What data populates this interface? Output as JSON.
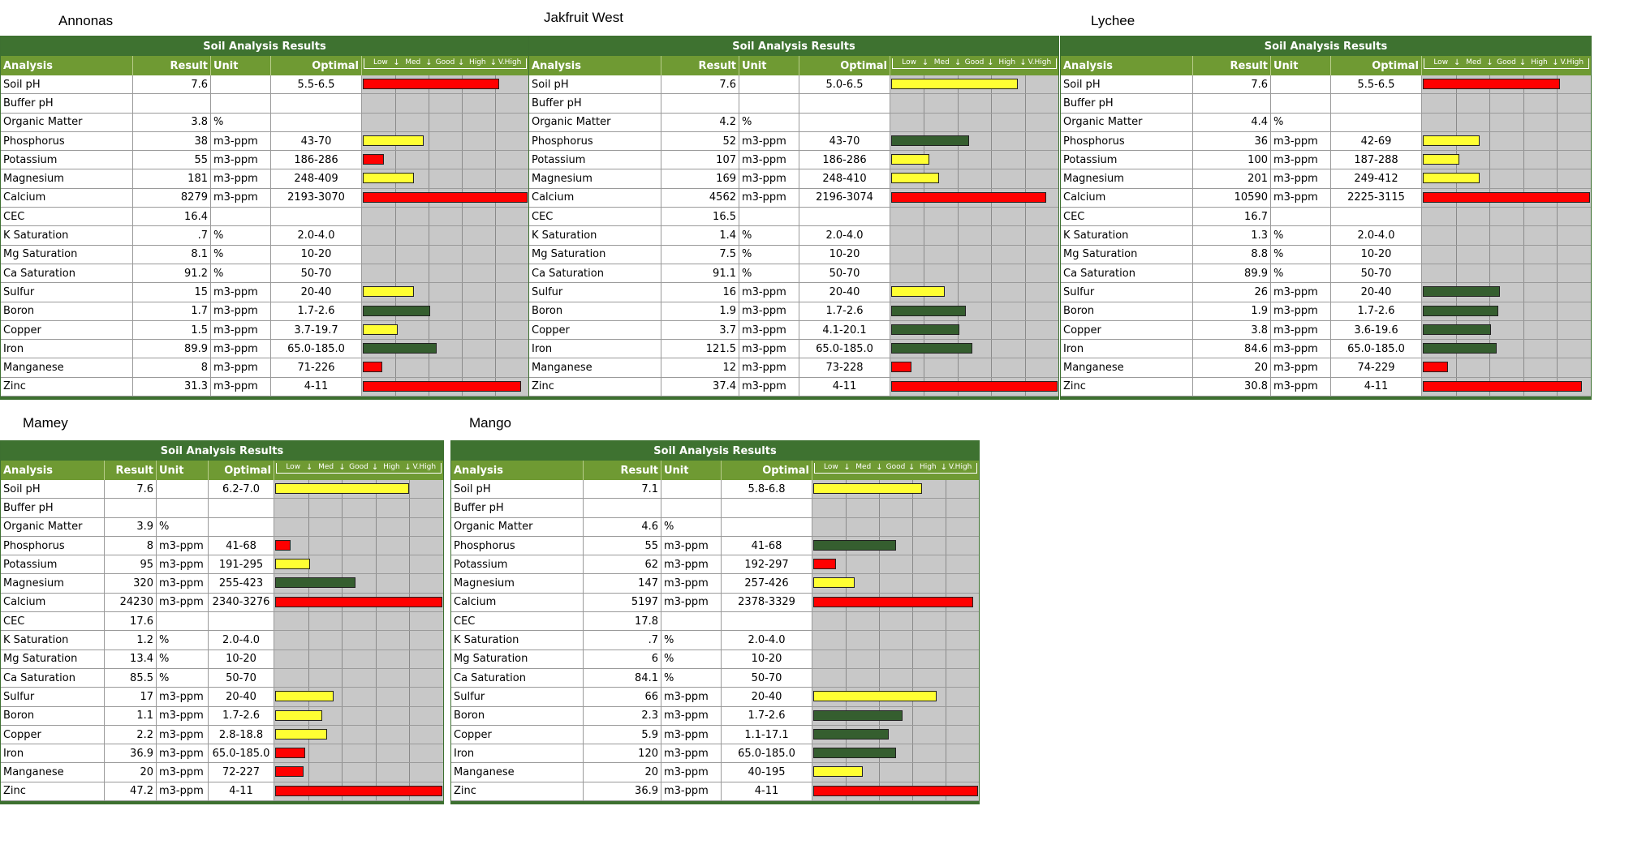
{
  "header_label": "Soil Analysis Results",
  "columns": {
    "analysis": "Analysis",
    "result": "Result",
    "unit": "Unit",
    "optimal": "Optimal"
  },
  "scale_labels": [
    "Low",
    "Med",
    "Good",
    "High",
    "V.High"
  ],
  "colors": {
    "red": "#ff0000",
    "yellow": "#ffff33",
    "green": "#355e2f",
    "header_dark": "#3e7230",
    "header_light": "#6f9a33"
  },
  "panels": [
    {
      "name": "Annonas",
      "rows": [
        {
          "analysis": "Soil pH",
          "result": "7.6",
          "unit": "",
          "optimal": "5.5-6.5",
          "bar": 0.83,
          "color": "red"
        },
        {
          "analysis": "Buffer pH",
          "result": "",
          "unit": "",
          "optimal": "",
          "bar": 0,
          "color": ""
        },
        {
          "analysis": "Organic Matter",
          "result": "3.8",
          "unit": "%",
          "optimal": "",
          "bar": 0,
          "color": ""
        },
        {
          "analysis": "Phosphorus",
          "result": "38",
          "unit": "m3-ppm",
          "optimal": "43-70",
          "bar": 0.37,
          "color": "yellow"
        },
        {
          "analysis": "Potassium",
          "result": "55",
          "unit": "m3-ppm",
          "optimal": "186-286",
          "bar": 0.13,
          "color": "red"
        },
        {
          "analysis": "Magnesium",
          "result": "181",
          "unit": "m3-ppm",
          "optimal": "248-409",
          "bar": 0.31,
          "color": "yellow"
        },
        {
          "analysis": "Calcium",
          "result": "8279",
          "unit": "m3-ppm",
          "optimal": "2193-3070",
          "bar": 1.0,
          "color": "red"
        },
        {
          "analysis": "CEC",
          "result": "16.4",
          "unit": "",
          "optimal": "",
          "bar": 0,
          "color": ""
        },
        {
          "analysis": "K Saturation",
          "result": ".7",
          "unit": "%",
          "optimal": "2.0-4.0",
          "bar": 0,
          "color": ""
        },
        {
          "analysis": "Mg Saturation",
          "result": "8.1",
          "unit": "%",
          "optimal": "10-20",
          "bar": 0,
          "color": ""
        },
        {
          "analysis": "Ca Saturation",
          "result": "91.2",
          "unit": "%",
          "optimal": "50-70",
          "bar": 0,
          "color": ""
        },
        {
          "analysis": "Sulfur",
          "result": "15",
          "unit": "m3-ppm",
          "optimal": "20-40",
          "bar": 0.31,
          "color": "yellow"
        },
        {
          "analysis": "Boron",
          "result": "1.7",
          "unit": "m3-ppm",
          "optimal": "1.7-2.6",
          "bar": 0.41,
          "color": "green"
        },
        {
          "analysis": "Copper",
          "result": "1.5",
          "unit": "m3-ppm",
          "optimal": "3.7-19.7",
          "bar": 0.21,
          "color": "yellow"
        },
        {
          "analysis": "Iron",
          "result": "89.9",
          "unit": "m3-ppm",
          "optimal": "65.0-185.0",
          "bar": 0.45,
          "color": "green"
        },
        {
          "analysis": "Manganese",
          "result": "8",
          "unit": "m3-ppm",
          "optimal": "71-226",
          "bar": 0.12,
          "color": "red"
        },
        {
          "analysis": "Zinc",
          "result": "31.3",
          "unit": "m3-ppm",
          "optimal": "4-11",
          "bar": 0.96,
          "color": "red"
        }
      ]
    },
    {
      "name": "Jakfruit West",
      "rows": [
        {
          "analysis": "Soil pH",
          "result": "7.6",
          "unit": "",
          "optimal": "5.0-6.5",
          "bar": 0.76,
          "color": "yellow"
        },
        {
          "analysis": "Buffer pH",
          "result": "",
          "unit": "",
          "optimal": "",
          "bar": 0,
          "color": ""
        },
        {
          "analysis": "Organic Matter",
          "result": "4.2",
          "unit": "%",
          "optimal": "",
          "bar": 0,
          "color": ""
        },
        {
          "analysis": "Phosphorus",
          "result": "52",
          "unit": "m3-ppm",
          "optimal": "43-70",
          "bar": 0.47,
          "color": "green"
        },
        {
          "analysis": "Potassium",
          "result": "107",
          "unit": "m3-ppm",
          "optimal": "186-286",
          "bar": 0.23,
          "color": "yellow"
        },
        {
          "analysis": "Magnesium",
          "result": "169",
          "unit": "m3-ppm",
          "optimal": "248-410",
          "bar": 0.29,
          "color": "yellow"
        },
        {
          "analysis": "Calcium",
          "result": "4562",
          "unit": "m3-ppm",
          "optimal": "2196-3074",
          "bar": 0.93,
          "color": "red"
        },
        {
          "analysis": "CEC",
          "result": "16.5",
          "unit": "",
          "optimal": "",
          "bar": 0,
          "color": ""
        },
        {
          "analysis": "K Saturation",
          "result": "1.4",
          "unit": "%",
          "optimal": "2.0-4.0",
          "bar": 0,
          "color": ""
        },
        {
          "analysis": "Mg Saturation",
          "result": "7.5",
          "unit": "%",
          "optimal": "10-20",
          "bar": 0,
          "color": ""
        },
        {
          "analysis": "Ca Saturation",
          "result": "91.1",
          "unit": "%",
          "optimal": "50-70",
          "bar": 0,
          "color": ""
        },
        {
          "analysis": "Sulfur",
          "result": "16",
          "unit": "m3-ppm",
          "optimal": "20-40",
          "bar": 0.32,
          "color": "yellow"
        },
        {
          "analysis": "Boron",
          "result": "1.9",
          "unit": "m3-ppm",
          "optimal": "1.7-2.6",
          "bar": 0.45,
          "color": "green"
        },
        {
          "analysis": "Copper",
          "result": "3.7",
          "unit": "m3-ppm",
          "optimal": "4.1-20.1",
          "bar": 0.41,
          "color": "green"
        },
        {
          "analysis": "Iron",
          "result": "121.5",
          "unit": "m3-ppm",
          "optimal": "65.0-185.0",
          "bar": 0.49,
          "color": "green"
        },
        {
          "analysis": "Manganese",
          "result": "12",
          "unit": "m3-ppm",
          "optimal": "73-228",
          "bar": 0.12,
          "color": "red"
        },
        {
          "analysis": "Zinc",
          "result": "37.4",
          "unit": "m3-ppm",
          "optimal": "4-11",
          "bar": 1.0,
          "color": "red"
        }
      ]
    },
    {
      "name": "Lychee",
      "rows": [
        {
          "analysis": "Soil pH",
          "result": "7.6",
          "unit": "",
          "optimal": "5.5-6.5",
          "bar": 0.82,
          "color": "red"
        },
        {
          "analysis": "Buffer pH",
          "result": "",
          "unit": "",
          "optimal": "",
          "bar": 0,
          "color": ""
        },
        {
          "analysis": "Organic Matter",
          "result": "4.4",
          "unit": "%",
          "optimal": "",
          "bar": 0,
          "color": ""
        },
        {
          "analysis": "Phosphorus",
          "result": "36",
          "unit": "m3-ppm",
          "optimal": "42-69",
          "bar": 0.34,
          "color": "yellow"
        },
        {
          "analysis": "Potassium",
          "result": "100",
          "unit": "m3-ppm",
          "optimal": "187-288",
          "bar": 0.22,
          "color": "yellow"
        },
        {
          "analysis": "Magnesium",
          "result": "201",
          "unit": "m3-ppm",
          "optimal": "249-412",
          "bar": 0.34,
          "color": "yellow"
        },
        {
          "analysis": "Calcium",
          "result": "10590",
          "unit": "m3-ppm",
          "optimal": "2225-3115",
          "bar": 1.0,
          "color": "red"
        },
        {
          "analysis": "CEC",
          "result": "16.7",
          "unit": "",
          "optimal": "",
          "bar": 0,
          "color": ""
        },
        {
          "analysis": "K Saturation",
          "result": "1.3",
          "unit": "%",
          "optimal": "2.0-4.0",
          "bar": 0,
          "color": ""
        },
        {
          "analysis": "Mg Saturation",
          "result": "8.8",
          "unit": "%",
          "optimal": "10-20",
          "bar": 0,
          "color": ""
        },
        {
          "analysis": "Ca Saturation",
          "result": "89.9",
          "unit": "%",
          "optimal": "50-70",
          "bar": 0,
          "color": ""
        },
        {
          "analysis": "Sulfur",
          "result": "26",
          "unit": "m3-ppm",
          "optimal": "20-40",
          "bar": 0.46,
          "color": "green"
        },
        {
          "analysis": "Boron",
          "result": "1.9",
          "unit": "m3-ppm",
          "optimal": "1.7-2.6",
          "bar": 0.45,
          "color": "green"
        },
        {
          "analysis": "Copper",
          "result": "3.8",
          "unit": "m3-ppm",
          "optimal": "3.6-19.6",
          "bar": 0.41,
          "color": "green"
        },
        {
          "analysis": "Iron",
          "result": "84.6",
          "unit": "m3-ppm",
          "optimal": "65.0-185.0",
          "bar": 0.44,
          "color": "green"
        },
        {
          "analysis": "Manganese",
          "result": "20",
          "unit": "m3-ppm",
          "optimal": "74-229",
          "bar": 0.15,
          "color": "red"
        },
        {
          "analysis": "Zinc",
          "result": "30.8",
          "unit": "m3-ppm",
          "optimal": "4-11",
          "bar": 0.95,
          "color": "red"
        }
      ]
    },
    {
      "name": "Mamey",
      "rows": [
        {
          "analysis": "Soil pH",
          "result": "7.6",
          "unit": "",
          "optimal": "6.2-7.0",
          "bar": 0.8,
          "color": "yellow"
        },
        {
          "analysis": "Buffer pH",
          "result": "",
          "unit": "",
          "optimal": "",
          "bar": 0,
          "color": ""
        },
        {
          "analysis": "Organic Matter",
          "result": "3.9",
          "unit": "%",
          "optimal": "",
          "bar": 0,
          "color": ""
        },
        {
          "analysis": "Phosphorus",
          "result": "8",
          "unit": "m3-ppm",
          "optimal": "41-68",
          "bar": 0.09,
          "color": "red"
        },
        {
          "analysis": "Potassium",
          "result": "95",
          "unit": "m3-ppm",
          "optimal": "191-295",
          "bar": 0.21,
          "color": "yellow"
        },
        {
          "analysis": "Magnesium",
          "result": "320",
          "unit": "m3-ppm",
          "optimal": "255-423",
          "bar": 0.48,
          "color": "green"
        },
        {
          "analysis": "Calcium",
          "result": "24230",
          "unit": "m3-ppm",
          "optimal": "2340-3276",
          "bar": 1.0,
          "color": "red"
        },
        {
          "analysis": "CEC",
          "result": "17.6",
          "unit": "",
          "optimal": "",
          "bar": 0,
          "color": ""
        },
        {
          "analysis": "K Saturation",
          "result": "1.2",
          "unit": "%",
          "optimal": "2.0-4.0",
          "bar": 0,
          "color": ""
        },
        {
          "analysis": "Mg Saturation",
          "result": "13.4",
          "unit": "%",
          "optimal": "10-20",
          "bar": 0,
          "color": ""
        },
        {
          "analysis": "Ca Saturation",
          "result": "85.5",
          "unit": "%",
          "optimal": "50-70",
          "bar": 0,
          "color": ""
        },
        {
          "analysis": "Sulfur",
          "result": "17",
          "unit": "m3-ppm",
          "optimal": "20-40",
          "bar": 0.35,
          "color": "yellow"
        },
        {
          "analysis": "Boron",
          "result": "1.1",
          "unit": "m3-ppm",
          "optimal": "1.7-2.6",
          "bar": 0.28,
          "color": "yellow"
        },
        {
          "analysis": "Copper",
          "result": "2.2",
          "unit": "m3-ppm",
          "optimal": "2.8-18.8",
          "bar": 0.31,
          "color": "yellow"
        },
        {
          "analysis": "Iron",
          "result": "36.9",
          "unit": "m3-ppm",
          "optimal": "65.0-185.0",
          "bar": 0.18,
          "color": "red"
        },
        {
          "analysis": "Manganese",
          "result": "20",
          "unit": "m3-ppm",
          "optimal": "72-227",
          "bar": 0.17,
          "color": "red"
        },
        {
          "analysis": "Zinc",
          "result": "47.2",
          "unit": "m3-ppm",
          "optimal": "4-11",
          "bar": 1.0,
          "color": "red"
        }
      ]
    },
    {
      "name": "Mango",
      "rows": [
        {
          "analysis": "Soil pH",
          "result": "7.1",
          "unit": "",
          "optimal": "5.8-6.8",
          "bar": 0.66,
          "color": "yellow"
        },
        {
          "analysis": "Buffer pH",
          "result": "",
          "unit": "",
          "optimal": "",
          "bar": 0,
          "color": ""
        },
        {
          "analysis": "Organic Matter",
          "result": "4.6",
          "unit": "%",
          "optimal": "",
          "bar": 0,
          "color": ""
        },
        {
          "analysis": "Phosphorus",
          "result": "55",
          "unit": "m3-ppm",
          "optimal": "41-68",
          "bar": 0.5,
          "color": "green"
        },
        {
          "analysis": "Potassium",
          "result": "62",
          "unit": "m3-ppm",
          "optimal": "192-297",
          "bar": 0.14,
          "color": "red"
        },
        {
          "analysis": "Magnesium",
          "result": "147",
          "unit": "m3-ppm",
          "optimal": "257-426",
          "bar": 0.25,
          "color": "yellow"
        },
        {
          "analysis": "Calcium",
          "result": "5197",
          "unit": "m3-ppm",
          "optimal": "2378-3329",
          "bar": 0.97,
          "color": "red"
        },
        {
          "analysis": "CEC",
          "result": "17.8",
          "unit": "",
          "optimal": "",
          "bar": 0,
          "color": ""
        },
        {
          "analysis": "K Saturation",
          "result": ".7",
          "unit": "%",
          "optimal": "2.0-4.0",
          "bar": 0,
          "color": ""
        },
        {
          "analysis": "Mg Saturation",
          "result": "6",
          "unit": "%",
          "optimal": "10-20",
          "bar": 0,
          "color": ""
        },
        {
          "analysis": "Ca Saturation",
          "result": "84.1",
          "unit": "%",
          "optimal": "50-70",
          "bar": 0,
          "color": ""
        },
        {
          "analysis": "Sulfur",
          "result": "66",
          "unit": "m3-ppm",
          "optimal": "20-40",
          "bar": 0.75,
          "color": "yellow"
        },
        {
          "analysis": "Boron",
          "result": "2.3",
          "unit": "m3-ppm",
          "optimal": "1.7-2.6",
          "bar": 0.54,
          "color": "green"
        },
        {
          "analysis": "Copper",
          "result": "5.9",
          "unit": "m3-ppm",
          "optimal": "1.1-17.1",
          "bar": 0.46,
          "color": "green"
        },
        {
          "analysis": "Iron",
          "result": "120",
          "unit": "m3-ppm",
          "optimal": "65.0-185.0",
          "bar": 0.5,
          "color": "green"
        },
        {
          "analysis": "Manganese",
          "result": "20",
          "unit": "m3-ppm",
          "optimal": "40-195",
          "bar": 0.3,
          "color": "yellow"
        },
        {
          "analysis": "Zinc",
          "result": "36.9",
          "unit": "m3-ppm",
          "optimal": "4-11",
          "bar": 1.0,
          "color": "red"
        }
      ]
    }
  ]
}
